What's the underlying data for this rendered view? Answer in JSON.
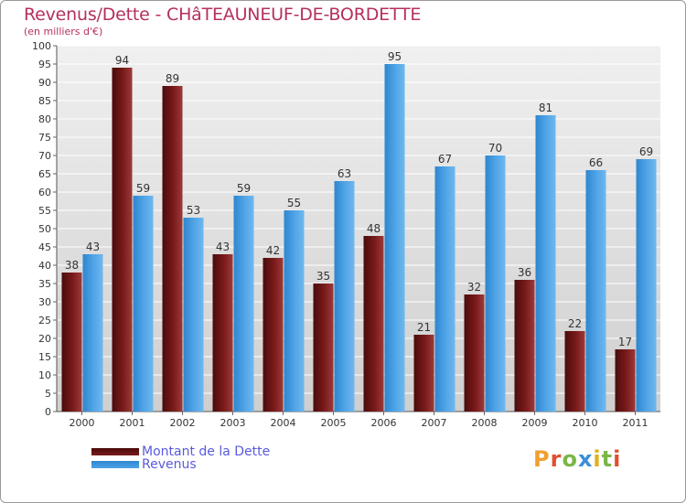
{
  "header": {
    "title": "Revenus/Dette - CHâTEAUNEUF-DE-BORDETTE",
    "subtitle": "(en milliers d'€)"
  },
  "colors": {
    "dette": "#7a1a1a",
    "revenus": "#4ea3e6",
    "title": "#b5305c",
    "grid": "#d8d8d8",
    "plot_bg": "#e4e4e4"
  },
  "chart_data": {
    "type": "bar",
    "categories": [
      "2000",
      "2001",
      "2002",
      "2003",
      "2004",
      "2005",
      "2006",
      "2007",
      "2008",
      "2009",
      "2010",
      "2011"
    ],
    "series": [
      {
        "name": "Montant de la Dette",
        "values": [
          38,
          94,
          89,
          43,
          42,
          35,
          48,
          21,
          32,
          36,
          22,
          17
        ]
      },
      {
        "name": "Revenus",
        "values": [
          43,
          59,
          53,
          59,
          55,
          63,
          95,
          67,
          70,
          81,
          66,
          69
        ]
      }
    ],
    "title": "Revenus/Dette - CHâTEAUNEUF-DE-BORDETTE",
    "ylabel": "(en milliers d'€)",
    "xlabel": "",
    "ylim": [
      0,
      100
    ],
    "ytick_step": 5,
    "grid": true,
    "legend_position": "bottom-left"
  },
  "legend": {
    "items": [
      {
        "label": "Montant de la Dette"
      },
      {
        "label": "Revenus"
      }
    ]
  },
  "logo": {
    "text": "Proxiti",
    "letters": [
      "P",
      "r",
      "o",
      "x",
      "i",
      "t",
      "i"
    ]
  }
}
